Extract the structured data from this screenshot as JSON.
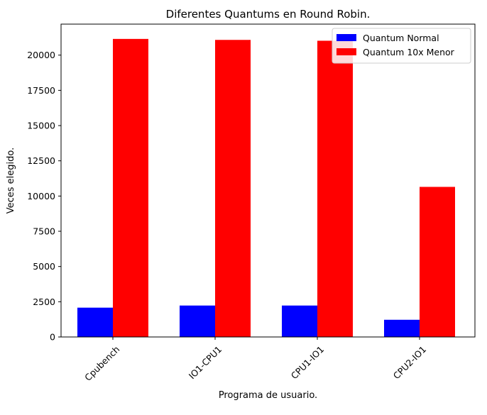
{
  "chart_data": {
    "type": "bar",
    "title": "Diferentes Quantums en Round Robin.",
    "xlabel": "Programa de usuario.",
    "ylabel": "Veces elegido.",
    "categories": [
      "Cpubench",
      "IO1-CPU1",
      "CPU1-IO1",
      "CPU2-IO1"
    ],
    "series": [
      {
        "name": "Quantum Normal",
        "color": "#0000ff",
        "values": [
          2080,
          2230,
          2230,
          1220
        ]
      },
      {
        "name": "Quantum 10x Menor",
        "color": "#ff0000",
        "values": [
          21150,
          21080,
          21020,
          10650
        ]
      }
    ],
    "ylim": [
      0,
      22200
    ],
    "yticks": [
      0,
      2500,
      5000,
      7500,
      10000,
      12500,
      15000,
      17500,
      20000
    ],
    "legend_position": "top-right",
    "grid": false
  }
}
